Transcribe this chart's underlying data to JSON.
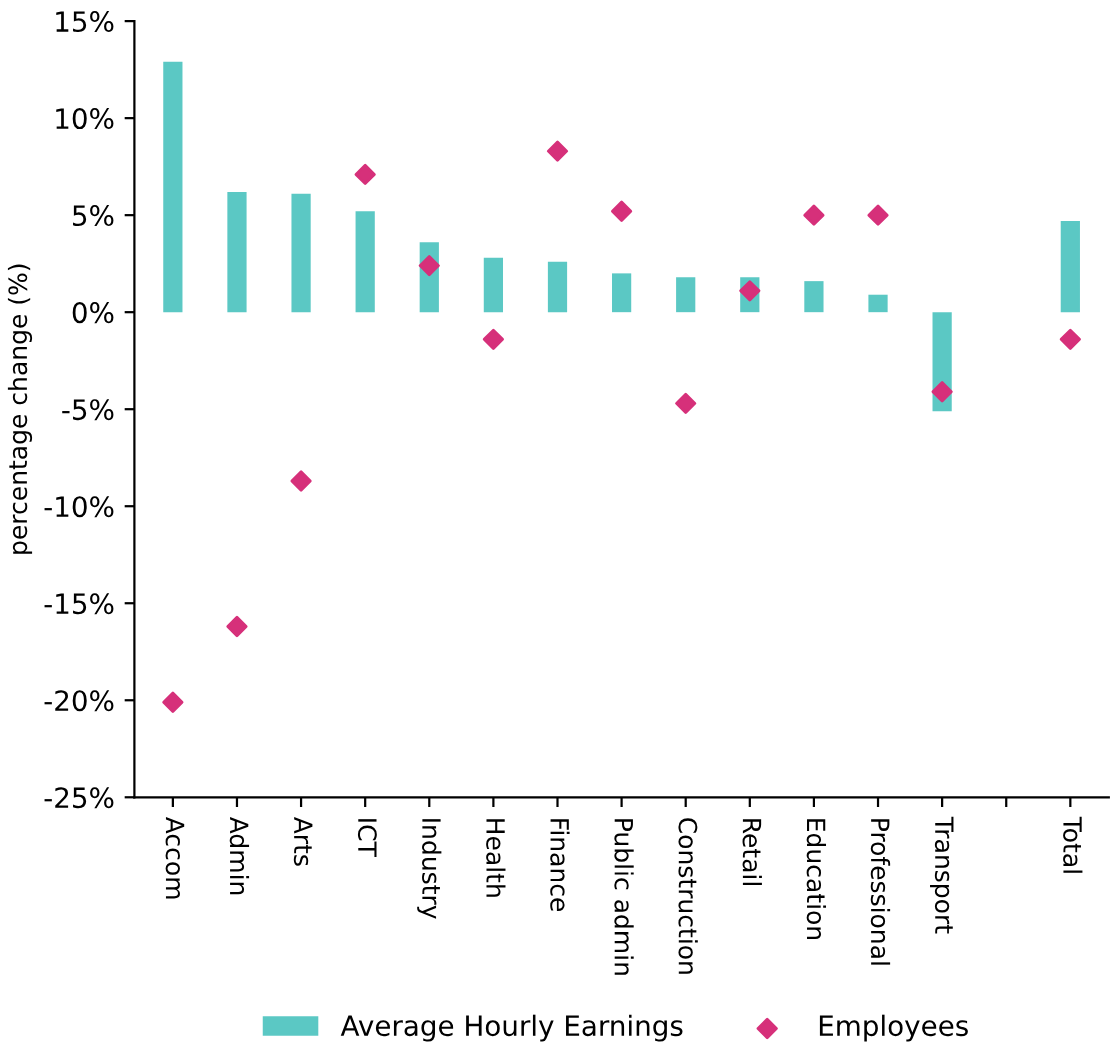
{
  "chart_data": {
    "type": "bar",
    "ylabel": "percentage change (%)",
    "categories": [
      "Accom",
      "Admin",
      "Arts",
      "ICT",
      "Industry",
      "Health",
      "Finance",
      "Public admin",
      "Construction",
      "Retail",
      "Education",
      "Professional",
      "Transport",
      null,
      "Total"
    ],
    "series": [
      {
        "name": "Average Hourly Earnings",
        "color": "#5bc8c4",
        "values": [
          12.9,
          6.2,
          6.1,
          5.2,
          3.6,
          2.8,
          2.6,
          2.0,
          1.8,
          1.8,
          1.6,
          0.9,
          -5.1,
          null,
          4.7
        ]
      },
      {
        "name": "Employees",
        "type": "scatter",
        "color": "#d6307a",
        "marker": "diamond",
        "values": [
          -20.1,
          -16.2,
          -8.7,
          7.1,
          2.4,
          -1.4,
          8.3,
          5.2,
          -4.7,
          1.1,
          5.0,
          5.0,
          -4.1,
          null,
          -1.4
        ]
      }
    ],
    "ylim": [
      -25,
      15
    ],
    "yticks": [
      {
        "value": -25,
        "label": "-25%"
      },
      {
        "value": -20,
        "label": "-20%"
      },
      {
        "value": -15,
        "label": "-15%"
      },
      {
        "value": -10,
        "label": "-10%"
      },
      {
        "value": -5,
        "label": "-5%"
      },
      {
        "value": 0,
        "label": "0%"
      },
      {
        "value": 5,
        "label": "5%"
      },
      {
        "value": 10,
        "label": "10%"
      },
      {
        "value": 15,
        "label": "15%"
      }
    ],
    "grid": false,
    "legend": "bottom"
  }
}
